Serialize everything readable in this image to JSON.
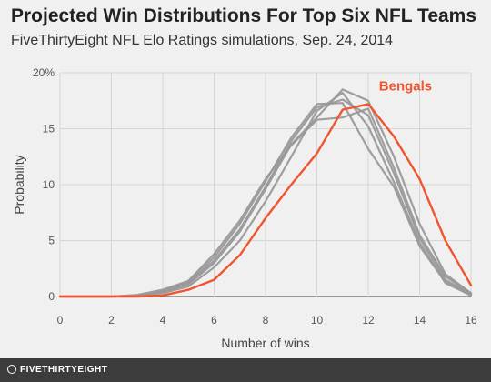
{
  "header": {
    "title": "Projected Win Distributions For Top Six NFL Teams",
    "subtitle": "FiveThirtyEight NFL Elo Ratings simulations, Sep. 24, 2014"
  },
  "footer": {
    "logo_text": "FIVETHIRTYEIGHT"
  },
  "colors": {
    "background": "#f0f0f0",
    "gray_series": "#999999",
    "highlight": "#f0552f",
    "grid": "#d6d6d6",
    "baseline": "#666666",
    "footer": "#3c3c3c"
  },
  "chart_data": {
    "type": "line",
    "title": "Projected Win Distributions For Top Six NFL Teams",
    "subtitle": "FiveThirtyEight NFL Elo Ratings simulations, Sep. 24, 2014",
    "xlabel": "Number of wins",
    "ylabel": "Probability",
    "xlim": [
      0,
      16
    ],
    "ylim": [
      0,
      20
    ],
    "x_ticks": [
      0,
      2,
      4,
      6,
      8,
      10,
      12,
      14,
      16
    ],
    "x_tick_labels": [
      "0",
      "2",
      "4",
      "6",
      "8",
      "10",
      "12",
      "14",
      "16"
    ],
    "y_ticks": [
      0,
      5,
      10,
      15,
      20
    ],
    "y_tick_labels": [
      "0",
      "5",
      "10",
      "15",
      "20%"
    ],
    "grid": true,
    "x": [
      0,
      1,
      2,
      3,
      4,
      5,
      6,
      7,
      8,
      9,
      10,
      11,
      12,
      13,
      14,
      15,
      16
    ],
    "series": [
      {
        "values": [
          0,
          0,
          0,
          0.1,
          0.5,
          1.3,
          3.5,
          6.5,
          10.3,
          14.2,
          17.2,
          17.3,
          13.2,
          9.8,
          4.5,
          1.3,
          0.2
        ]
      },
      {
        "values": [
          0,
          0,
          0,
          0.1,
          0.4,
          1.1,
          3.0,
          5.8,
          9.6,
          13.6,
          16.0,
          18.5,
          17.5,
          12.5,
          6.5,
          2.0,
          0.3
        ]
      },
      {
        "values": [
          0,
          0,
          0,
          0.15,
          0.6,
          1.4,
          3.8,
          6.8,
          10.5,
          13.5,
          15.8,
          16.0,
          16.8,
          11.5,
          5.5,
          1.8,
          0.3
        ]
      },
      {
        "values": [
          0,
          0,
          0,
          0.1,
          0.3,
          0.9,
          2.6,
          5.0,
          8.5,
          12.5,
          16.6,
          18.2,
          15.2,
          10.2,
          4.8,
          1.2,
          0.1
        ]
      },
      {
        "values": [
          0,
          0,
          0,
          0.05,
          0.4,
          1.2,
          3.2,
          6.0,
          9.8,
          13.9,
          16.9,
          17.6,
          16.2,
          11.0,
          5.2,
          1.5,
          0.2
        ]
      },
      {
        "name": "Bengals",
        "highlight": true,
        "values": [
          0,
          0,
          0,
          0,
          0.1,
          0.6,
          1.5,
          3.7,
          7.0,
          10.0,
          12.8,
          16.7,
          17.2,
          14.3,
          10.5,
          5.0,
          1.0
        ]
      }
    ]
  }
}
